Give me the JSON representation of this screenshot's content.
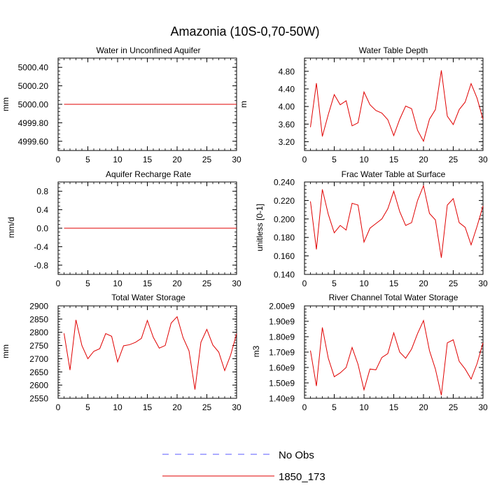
{
  "figure": {
    "title": "Amazonia (10S-0,70-50W)"
  },
  "legend": {
    "entries": [
      {
        "label": "No Obs",
        "color": "#5a5aff",
        "style": "dashed"
      },
      {
        "label": "1850_173",
        "color": "#e00000",
        "style": "solid"
      }
    ]
  },
  "chart_data": [
    {
      "type": "line",
      "title": "Water in Unconfined Aquifer",
      "ylabel": "mm",
      "xlim": [
        0,
        30
      ],
      "ylim": [
        4999.5,
        5000.5
      ],
      "xticks": [
        0,
        5,
        10,
        15,
        20,
        25,
        30
      ],
      "xtick_labels": [
        "0",
        "5",
        "10",
        "15",
        "20",
        "25",
        "30"
      ],
      "yticks": [
        4999.6,
        4999.8,
        5000.0,
        5000.2,
        5000.4
      ],
      "ytick_labels": [
        "4999.60",
        "4999.80",
        "5000.00",
        "5000.20",
        "5000.40"
      ],
      "series": [
        {
          "name": "1850_173",
          "color": "#e00000",
          "x": [
            1,
            2,
            3,
            4,
            5,
            6,
            7,
            8,
            9,
            10,
            11,
            12,
            13,
            14,
            15,
            16,
            17,
            18,
            19,
            20,
            21,
            22,
            23,
            24,
            25,
            26,
            27,
            28,
            29,
            30
          ],
          "values": [
            5000,
            5000,
            5000,
            5000,
            5000,
            5000,
            5000,
            5000,
            5000,
            5000,
            5000,
            5000,
            5000,
            5000,
            5000,
            5000,
            5000,
            5000,
            5000,
            5000,
            5000,
            5000,
            5000,
            5000,
            5000,
            5000,
            5000,
            5000,
            5000,
            5000
          ]
        }
      ]
    },
    {
      "type": "line",
      "title": "Water Table Depth",
      "ylabel": "m",
      "xlim": [
        0,
        30
      ],
      "ylim": [
        3.0,
        5.1
      ],
      "xticks": [
        0,
        5,
        10,
        15,
        20,
        25,
        30
      ],
      "xtick_labels": [
        "0",
        "5",
        "10",
        "15",
        "20",
        "25",
        "30"
      ],
      "yticks": [
        3.2,
        3.6,
        4.0,
        4.4,
        4.8
      ],
      "ytick_labels": [
        "3.20",
        "3.60",
        "4.00",
        "4.40",
        "4.80"
      ],
      "series": [
        {
          "name": "1850_173",
          "color": "#e00000",
          "x": [
            1,
            2,
            3,
            4,
            5,
            6,
            7,
            8,
            9,
            10,
            11,
            12,
            13,
            14,
            15,
            16,
            17,
            18,
            19,
            20,
            21,
            22,
            23,
            24,
            25,
            26,
            27,
            28,
            29,
            30
          ],
          "values": [
            3.53,
            4.53,
            3.32,
            3.82,
            4.27,
            4.04,
            4.13,
            3.56,
            3.63,
            4.33,
            4.04,
            3.91,
            3.85,
            3.7,
            3.34,
            3.71,
            4.01,
            3.95,
            3.46,
            3.21,
            3.71,
            3.93,
            4.82,
            3.78,
            3.59,
            3.93,
            4.1,
            4.52,
            4.19,
            3.71
          ]
        }
      ]
    },
    {
      "type": "line",
      "title": "Aquifer Recharge Rate",
      "ylabel": "mm/d",
      "xlim": [
        0,
        30
      ],
      "ylim": [
        -1.0,
        1.0
      ],
      "xticks": [
        0,
        5,
        10,
        15,
        20,
        25,
        30
      ],
      "xtick_labels": [
        "0",
        "5",
        "10",
        "15",
        "20",
        "25",
        "30"
      ],
      "yticks": [
        -0.8,
        -0.4,
        0.0,
        0.4,
        0.8
      ],
      "ytick_labels": [
        "-0.8",
        "-0.4",
        "0.0",
        "0.4",
        "0.8"
      ],
      "series": [
        {
          "name": "1850_173",
          "color": "#e00000",
          "x": [
            1,
            2,
            3,
            4,
            5,
            6,
            7,
            8,
            9,
            10,
            11,
            12,
            13,
            14,
            15,
            16,
            17,
            18,
            19,
            20,
            21,
            22,
            23,
            24,
            25,
            26,
            27,
            28,
            29,
            30
          ],
          "values": [
            0,
            0,
            0,
            0,
            0,
            0,
            0,
            0,
            0,
            0,
            0,
            0,
            0,
            0,
            0,
            0,
            0,
            0,
            0,
            0,
            0,
            0,
            0,
            0,
            0,
            0,
            0,
            0,
            0,
            0
          ]
        }
      ]
    },
    {
      "type": "line",
      "title": "Frac Water Table at Surface",
      "ylabel": "unitless [0-1]",
      "xlim": [
        0,
        30
      ],
      "ylim": [
        0.14,
        0.24
      ],
      "xticks": [
        0,
        5,
        10,
        15,
        20,
        25,
        30
      ],
      "xtick_labels": [
        "0",
        "5",
        "10",
        "15",
        "20",
        "25",
        "30"
      ],
      "yticks": [
        0.14,
        0.16,
        0.18,
        0.2,
        0.22,
        0.24
      ],
      "ytick_labels": [
        "0.140",
        "0.160",
        "0.180",
        "0.200",
        "0.220",
        "0.240"
      ],
      "series": [
        {
          "name": "1850_173",
          "color": "#e00000",
          "x": [
            1,
            2,
            3,
            4,
            5,
            6,
            7,
            8,
            9,
            10,
            11,
            12,
            13,
            14,
            15,
            16,
            17,
            18,
            19,
            20,
            21,
            22,
            23,
            24,
            25,
            26,
            27,
            28,
            29,
            30
          ],
          "values": [
            0.219,
            0.167,
            0.232,
            0.205,
            0.185,
            0.193,
            0.188,
            0.217,
            0.215,
            0.175,
            0.19,
            0.195,
            0.2,
            0.211,
            0.23,
            0.208,
            0.193,
            0.196,
            0.22,
            0.236,
            0.206,
            0.199,
            0.158,
            0.215,
            0.222,
            0.196,
            0.191,
            0.172,
            0.192,
            0.214
          ]
        }
      ]
    },
    {
      "type": "line",
      "title": "Total Water Storage",
      "ylabel": "mm",
      "xlim": [
        0,
        30
      ],
      "ylim": [
        2550,
        2900
      ],
      "xticks": [
        0,
        5,
        10,
        15,
        20,
        25,
        30
      ],
      "xtick_labels": [
        "0",
        "5",
        "10",
        "15",
        "20",
        "25",
        "30"
      ],
      "yticks": [
        2550,
        2600,
        2650,
        2700,
        2750,
        2800,
        2850,
        2900
      ],
      "ytick_labels": [
        "2550",
        "2600",
        "2650",
        "2700",
        "2750",
        "2800",
        "2850",
        "2900"
      ],
      "series": [
        {
          "name": "1850_173",
          "color": "#e00000",
          "x": [
            1,
            2,
            3,
            4,
            5,
            6,
            7,
            8,
            9,
            10,
            11,
            12,
            13,
            14,
            15,
            16,
            17,
            18,
            19,
            20,
            21,
            22,
            23,
            24,
            25,
            26,
            27,
            28,
            29,
            30
          ],
          "values": [
            2796,
            2657,
            2847,
            2750,
            2700,
            2728,
            2738,
            2795,
            2785,
            2688,
            2749,
            2753,
            2762,
            2777,
            2845,
            2781,
            2740,
            2750,
            2835,
            2859,
            2780,
            2730,
            2583,
            2762,
            2811,
            2752,
            2725,
            2655,
            2714,
            2795
          ]
        }
      ]
    },
    {
      "type": "line",
      "title": "River Channel Total Water Storage",
      "ylabel": "m3",
      "xlim": [
        0,
        30
      ],
      "ylim": [
        1400000000.0,
        2000000000.0
      ],
      "xticks": [
        0,
        5,
        10,
        15,
        20,
        25,
        30
      ],
      "xtick_labels": [
        "0",
        "5",
        "10",
        "15",
        "20",
        "25",
        "30"
      ],
      "yticks": [
        1400000000.0,
        1500000000.0,
        1600000000.0,
        1700000000.0,
        1800000000.0,
        1900000000.0,
        2000000000.0
      ],
      "ytick_labels": [
        "1.40e9",
        "1.50e9",
        "1.60e9",
        "1.70e9",
        "1.80e9",
        "1.90e9",
        "2.00e9"
      ],
      "series": [
        {
          "name": "1850_173",
          "color": "#e00000",
          "x": [
            1,
            2,
            3,
            4,
            5,
            6,
            7,
            8,
            9,
            10,
            11,
            12,
            13,
            14,
            15,
            16,
            17,
            18,
            19,
            20,
            21,
            22,
            23,
            24,
            25,
            26,
            27,
            28,
            29,
            30
          ],
          "values": [
            1710000000.0,
            1480000000.0,
            1860000000.0,
            1660000000.0,
            1540000000.0,
            1565000000.0,
            1600000000.0,
            1730000000.0,
            1620000000.0,
            1455000000.0,
            1590000000.0,
            1585000000.0,
            1665000000.0,
            1690000000.0,
            1825000000.0,
            1700000000.0,
            1660000000.0,
            1720000000.0,
            1820000000.0,
            1905000000.0,
            1710000000.0,
            1590000000.0,
            1420000000.0,
            1760000000.0,
            1780000000.0,
            1640000000.0,
            1590000000.0,
            1525000000.0,
            1625000000.0,
            1760000000.0
          ]
        }
      ]
    }
  ]
}
